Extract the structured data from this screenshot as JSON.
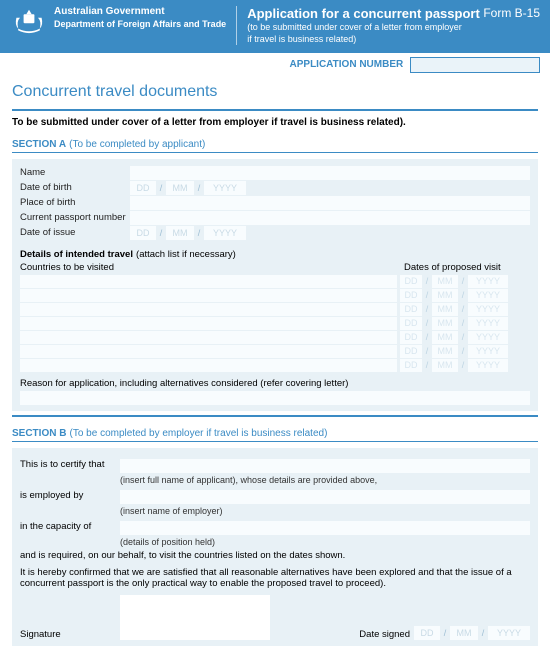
{
  "header": {
    "gov_title": "Australian Government",
    "gov_sub": "Department of Foreign Affairs and Trade",
    "form_title": "Application for a concurrent passport",
    "form_sub1": "(to be submitted under cover of a letter from employer",
    "form_sub2": "if travel is business related)",
    "form_id": "Form B-15",
    "appnum_label": "APPLICATION NUMBER"
  },
  "page_title": "Concurrent travel documents",
  "intro": "To be submitted under cover of a letter from employer if travel is business related).",
  "sectionA": {
    "title": "SECTION A",
    "subtitle": "(To be completed by applicant)",
    "labels": {
      "name": "Name",
      "dob": "Date of birth",
      "pob": "Place of birth",
      "passport": "Current passport number",
      "issue": "Date of issue"
    }
  },
  "date_ph": {
    "dd": "DD",
    "mm": "MM",
    "yy": "YYYY",
    "sep": "/"
  },
  "travel": {
    "title": "Details of intended travel",
    "subtitle": "(attach list if necessary)",
    "col1": "Countries to be visited",
    "col2": "Dates of proposed visit",
    "rows": 7,
    "reason_label": "Reason for application, including alternatives considered (refer covering letter)"
  },
  "sectionB": {
    "title": "SECTION B",
    "subtitle": "(To be completed by employer if travel is business related)",
    "certify": "This is to certify that",
    "certify_hint": "(insert full name of applicant), whose details are provided above,",
    "employed": "is employed by",
    "employed_hint": "(insert name of employer)",
    "capacity": "in the capacity of",
    "capacity_hint": "(details of position held)",
    "required": "and is required, on our behalf, to visit the countries listed on the dates shown.",
    "confirm": "It is hereby confirmed that we are satisfied that all reasonable alternatives have been explored and that the issue of a concurrent passport is the only practical way to enable the proposed travel to proceed).",
    "signature": "Signature",
    "date_signed": "Date signed"
  }
}
